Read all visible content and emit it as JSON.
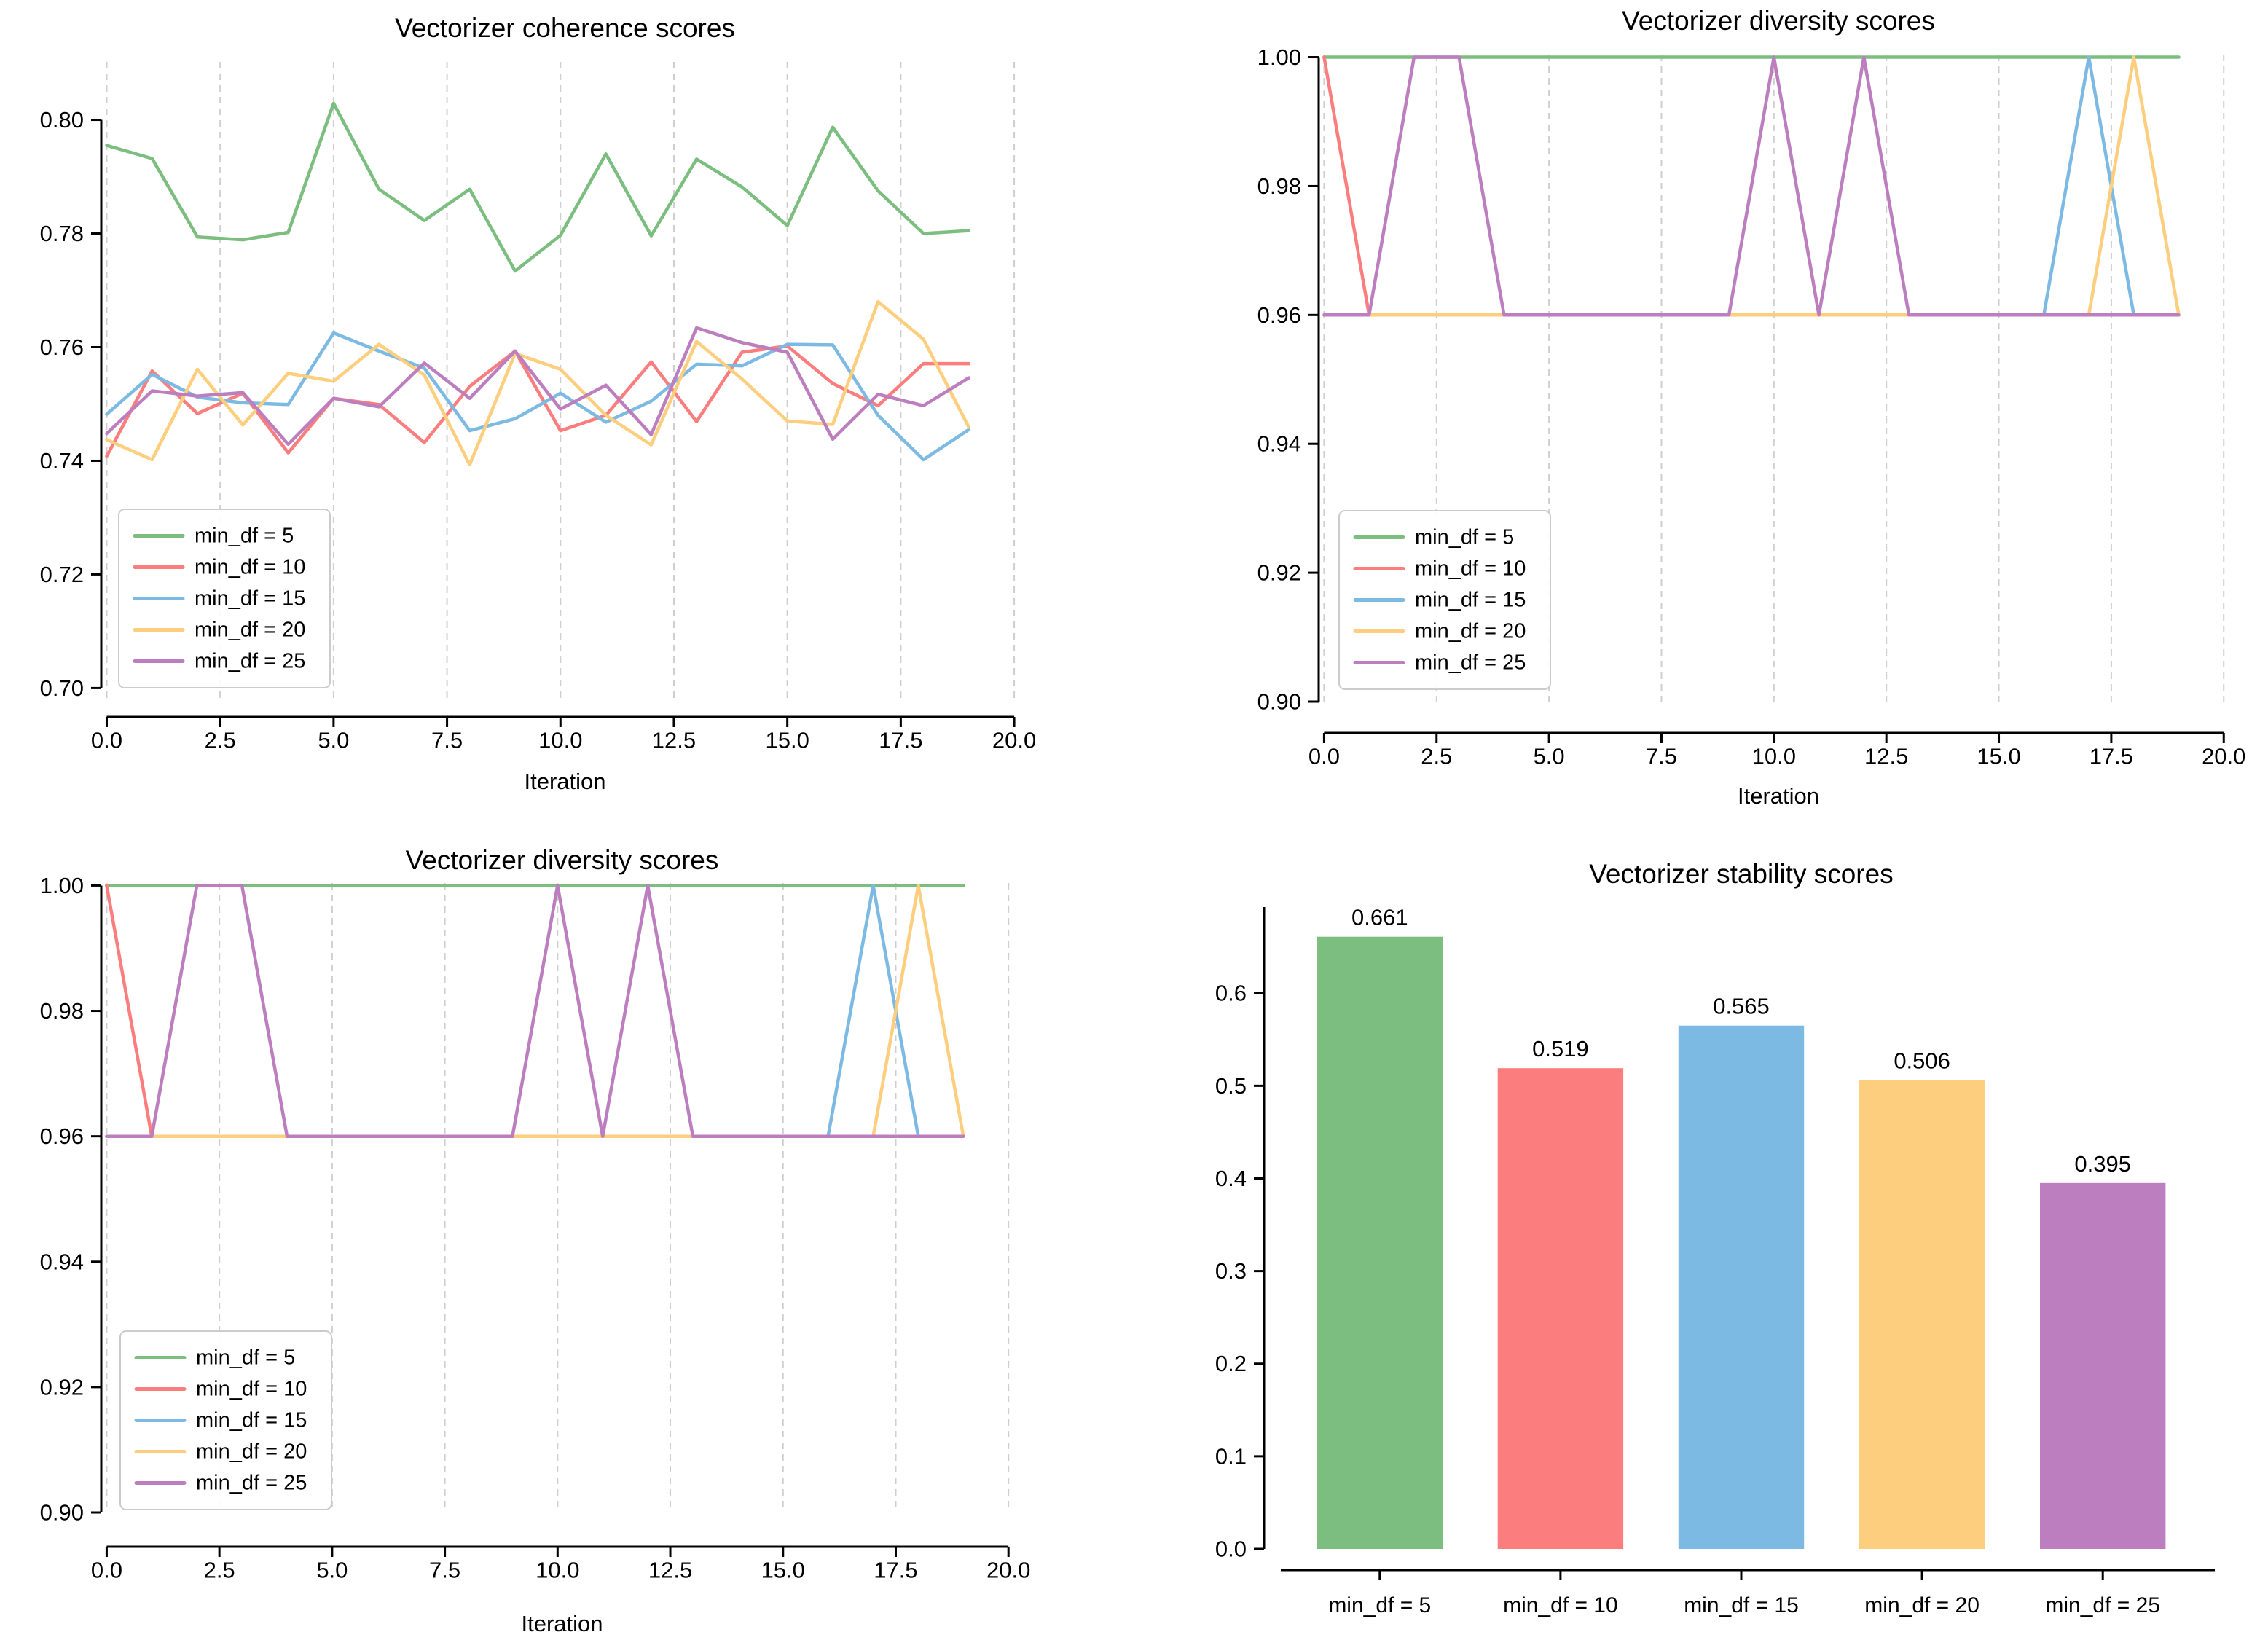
{
  "figure": {
    "background": "#ffffff"
  },
  "colors": {
    "min_df_5": "#7CBE7F",
    "min_df_10": "#FC7D7D",
    "min_df_15": "#7DBAE3",
    "min_df_20": "#FDCE7D",
    "min_df_25": "#BC7EBE",
    "grid": "#cfcfcf",
    "axis": "#000000",
    "legend_border": "#cccccc",
    "text": "#000000"
  },
  "chart_data": [
    {
      "id": "coherence",
      "type": "line",
      "title": "Vectorizer coherence scores",
      "xlabel": "Iteration",
      "grid": "vertical-dashed",
      "legend": true,
      "legend_position": "lower-left",
      "xlim": [
        -0.12,
        20.32
      ],
      "ylim": [
        0.698,
        0.8102
      ],
      "x_ticks": [
        0,
        2.5,
        5,
        7.5,
        10,
        12.5,
        15,
        17.5,
        20
      ],
      "x_tick_labels": [
        "0.0",
        "2.5",
        "5.0",
        "7.5",
        "10.0",
        "12.5",
        "15.0",
        "17.5",
        "20.0"
      ],
      "y_ticks": [
        0.7,
        0.72,
        0.74,
        0.76,
        0.78,
        0.8
      ],
      "y_tick_labels": [
        "0.70",
        "0.72",
        "0.74",
        "0.76",
        "0.78",
        "0.80"
      ],
      "series": [
        {
          "name": "min_df = 5",
          "color": "min_df_5",
          "values": [
            0.7955,
            0.7932,
            0.7794,
            0.7789,
            0.7802,
            0.8029,
            0.7878,
            0.7823,
            0.7878,
            0.7734,
            0.7797,
            0.794,
            0.7796,
            0.7931,
            0.7882,
            0.7814,
            0.7987,
            0.7875,
            0.78,
            0.7805
          ]
        },
        {
          "name": "min_df = 10",
          "color": "min_df_10",
          "values": [
            0.7408,
            0.7558,
            0.7483,
            0.7519,
            0.7414,
            0.751,
            0.7499,
            0.7432,
            0.7531,
            0.7593,
            0.7453,
            0.748,
            0.7574,
            0.7469,
            0.7591,
            0.7602,
            0.7536,
            0.7497,
            0.7571,
            0.7571
          ]
        },
        {
          "name": "min_df = 15",
          "color": "min_df_15",
          "values": [
            0.7482,
            0.7552,
            0.7512,
            0.7502,
            0.7499,
            0.7625,
            0.7593,
            0.7563,
            0.7453,
            0.7474,
            0.7519,
            0.7468,
            0.7505,
            0.757,
            0.7567,
            0.7605,
            0.7604,
            0.748,
            0.7402,
            0.7455
          ]
        },
        {
          "name": "min_df = 20",
          "color": "min_df_20",
          "values": [
            0.7437,
            0.7402,
            0.7561,
            0.7463,
            0.7554,
            0.754,
            0.7605,
            0.7551,
            0.7393,
            0.7589,
            0.7561,
            0.748,
            0.7428,
            0.761,
            0.7544,
            0.747,
            0.7464,
            0.768,
            0.7614,
            0.7459
          ]
        },
        {
          "name": "min_df = 25",
          "color": "min_df_25",
          "values": [
            0.7448,
            0.7523,
            0.7514,
            0.752,
            0.7429,
            0.751,
            0.7495,
            0.7572,
            0.751,
            0.7593,
            0.7491,
            0.7533,
            0.7446,
            0.7634,
            0.7608,
            0.7591,
            0.7438,
            0.7517,
            0.7497,
            0.7546
          ]
        }
      ]
    },
    {
      "id": "diversity-top",
      "type": "line",
      "title": "Vectorizer diversity scores",
      "xlabel": "Iteration",
      "grid": "vertical-dashed",
      "legend": true,
      "legend_position": "lower-left",
      "xlim": [
        -0.12,
        20.32
      ],
      "ylim": [
        0.9,
        1.0004
      ],
      "x_ticks": [
        0,
        2.5,
        5,
        7.5,
        10,
        12.5,
        15,
        17.5,
        20
      ],
      "x_tick_labels": [
        "0.0",
        "2.5",
        "5.0",
        "7.5",
        "10.0",
        "12.5",
        "15.0",
        "17.5",
        "20.0"
      ],
      "y_ticks": [
        0.9,
        0.92,
        0.94,
        0.96,
        0.98,
        1.0
      ],
      "y_tick_labels": [
        "0.90",
        "0.92",
        "0.94",
        "0.96",
        "0.98",
        "1.00"
      ],
      "series": [
        {
          "name": "min_df = 5",
          "color": "min_df_5",
          "values": [
            1.0,
            1.0,
            1.0,
            1.0,
            1.0,
            1.0,
            1.0,
            1.0,
            1.0,
            1.0,
            1.0,
            1.0,
            1.0,
            1.0,
            1.0,
            1.0,
            1.0,
            1.0,
            1.0,
            1.0
          ]
        },
        {
          "name": "min_df = 10",
          "color": "min_df_10",
          "values": [
            1.0,
            0.96,
            0.96,
            0.96,
            0.96,
            0.96,
            0.96,
            0.96,
            0.96,
            0.96,
            0.96,
            0.96,
            0.96,
            0.96,
            0.96,
            0.96,
            0.96,
            0.96,
            0.96,
            0.96
          ]
        },
        {
          "name": "min_df = 15",
          "color": "min_df_15",
          "values": [
            0.96,
            0.96,
            0.96,
            0.96,
            0.96,
            0.96,
            0.96,
            0.96,
            0.96,
            0.96,
            0.96,
            0.96,
            0.96,
            0.96,
            0.96,
            0.96,
            0.96,
            1.0,
            0.96,
            0.96
          ]
        },
        {
          "name": "min_df = 20",
          "color": "min_df_20",
          "values": [
            0.96,
            0.96,
            0.96,
            0.96,
            0.96,
            0.96,
            0.96,
            0.96,
            0.96,
            0.96,
            0.96,
            0.96,
            0.96,
            0.96,
            0.96,
            0.96,
            0.96,
            0.96,
            1.0,
            0.96
          ]
        },
        {
          "name": "min_df = 25",
          "color": "min_df_25",
          "values": [
            0.96,
            0.96,
            1.0,
            1.0,
            0.96,
            0.96,
            0.96,
            0.96,
            0.96,
            0.96,
            1.0,
            0.96,
            1.0,
            0.96,
            0.96,
            0.96,
            0.96,
            0.96,
            0.96,
            0.96
          ]
        }
      ]
    },
    {
      "id": "diversity-bottom",
      "type": "line",
      "title": "Vectorizer diversity scores",
      "xlabel": "Iteration",
      "grid": "vertical-dashed",
      "legend": true,
      "legend_position": "lower-left",
      "xlim": [
        -0.12,
        20.32
      ],
      "ylim": [
        0.9,
        1.0004
      ],
      "x_ticks": [
        0,
        2.5,
        5,
        7.5,
        10,
        12.5,
        15,
        17.5,
        20
      ],
      "x_tick_labels": [
        "0.0",
        "2.5",
        "5.0",
        "7.5",
        "10.0",
        "12.5",
        "15.0",
        "17.5",
        "20.0"
      ],
      "y_ticks": [
        0.9,
        0.92,
        0.94,
        0.96,
        0.98,
        1.0
      ],
      "y_tick_labels": [
        "0.90",
        "0.92",
        "0.94",
        "0.96",
        "0.98",
        "1.00"
      ],
      "series": [
        {
          "name": "min_df = 5",
          "color": "min_df_5",
          "values": [
            1.0,
            1.0,
            1.0,
            1.0,
            1.0,
            1.0,
            1.0,
            1.0,
            1.0,
            1.0,
            1.0,
            1.0,
            1.0,
            1.0,
            1.0,
            1.0,
            1.0,
            1.0,
            1.0,
            1.0
          ]
        },
        {
          "name": "min_df = 10",
          "color": "min_df_10",
          "values": [
            1.0,
            0.96,
            0.96,
            0.96,
            0.96,
            0.96,
            0.96,
            0.96,
            0.96,
            0.96,
            0.96,
            0.96,
            0.96,
            0.96,
            0.96,
            0.96,
            0.96,
            0.96,
            0.96,
            0.96
          ]
        },
        {
          "name": "min_df = 15",
          "color": "min_df_15",
          "values": [
            0.96,
            0.96,
            0.96,
            0.96,
            0.96,
            0.96,
            0.96,
            0.96,
            0.96,
            0.96,
            0.96,
            0.96,
            0.96,
            0.96,
            0.96,
            0.96,
            0.96,
            1.0,
            0.96,
            0.96
          ]
        },
        {
          "name": "min_df = 20",
          "color": "min_df_20",
          "values": [
            0.96,
            0.96,
            0.96,
            0.96,
            0.96,
            0.96,
            0.96,
            0.96,
            0.96,
            0.96,
            0.96,
            0.96,
            0.96,
            0.96,
            0.96,
            0.96,
            0.96,
            0.96,
            1.0,
            0.96
          ]
        },
        {
          "name": "min_df = 25",
          "color": "min_df_25",
          "values": [
            0.96,
            0.96,
            1.0,
            1.0,
            0.96,
            0.96,
            0.96,
            0.96,
            0.96,
            0.96,
            1.0,
            0.96,
            1.0,
            0.96,
            0.96,
            0.96,
            0.96,
            0.96,
            0.96,
            0.96
          ]
        }
      ]
    },
    {
      "id": "stability",
      "type": "bar",
      "title": "Vectorizer stability scores",
      "xlabel": "",
      "grid": "off",
      "legend": false,
      "xlim": [
        -0.64,
        4.64
      ],
      "ylim": [
        0,
        0.693
      ],
      "bar_width": 0.695,
      "categories": [
        "min_df = 5",
        "min_df = 10",
        "min_df = 15",
        "min_df = 20",
        "min_df = 25"
      ],
      "values": [
        0.661,
        0.519,
        0.565,
        0.506,
        0.395
      ],
      "value_labels": [
        "0.661",
        "0.519",
        "0.565",
        "0.506",
        "0.395"
      ],
      "bar_colors": [
        "min_df_5",
        "min_df_10",
        "min_df_15",
        "min_df_20",
        "min_df_25"
      ],
      "y_ticks": [
        0,
        0.1,
        0.2,
        0.3,
        0.4,
        0.5,
        0.6
      ],
      "y_tick_labels": [
        "0.0",
        "0.1",
        "0.2",
        "0.3",
        "0.4",
        "0.5",
        "0.6"
      ]
    }
  ]
}
